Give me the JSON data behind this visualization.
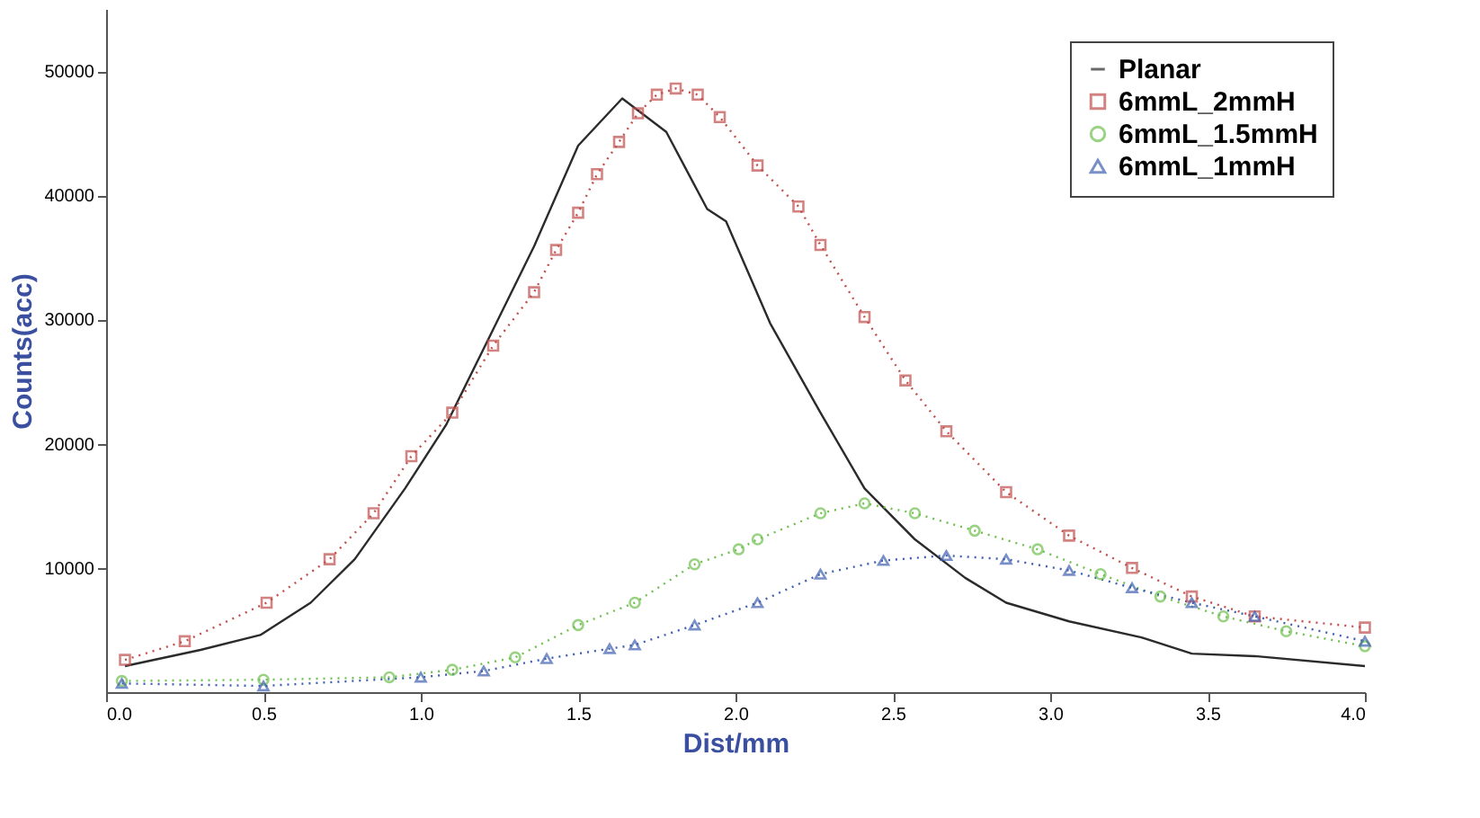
{
  "chart_data": {
    "type": "line",
    "xlabel": "Dist/mm",
    "ylabel": "Counts(acc)",
    "xlim": [
      0,
      4
    ],
    "xticks": [
      {
        "value": 0,
        "label": "0.0"
      },
      0.5,
      {
        "value": 1,
        "label": "1.0"
      },
      1.5,
      {
        "value": 2,
        "label": "2.0"
      },
      2.5,
      {
        "value": 3,
        "label": "3.0"
      },
      3.5,
      {
        "value": 4,
        "label": "4.0"
      }
    ],
    "ylim": [
      0,
      55000
    ],
    "yticks": [
      10000,
      20000,
      30000,
      40000,
      50000
    ],
    "grid": false,
    "legend": "top right",
    "series": [
      {
        "name": "Planar",
        "color": "#2b2b2b",
        "marker": "none",
        "line_style": "solid",
        "x": [
          0.06,
          0.3,
          0.49,
          0.65,
          0.79,
          0.95,
          1.08,
          1.22,
          1.36,
          1.5,
          1.64,
          1.78,
          1.91,
          1.97,
          2.11,
          2.27,
          2.41,
          2.57,
          2.73,
          2.86,
          3.06,
          3.29,
          3.45,
          3.65,
          4.0
        ],
        "values": [
          2100,
          3400,
          4600,
          7200,
          10700,
          16400,
          21500,
          28700,
          35900,
          44000,
          47800,
          45100,
          38900,
          37900,
          29700,
          22500,
          16400,
          12300,
          9200,
          7200,
          5700,
          4400,
          3100,
          2900,
          2100
        ]
      },
      {
        "name": "6mmL_2mmH",
        "color": "#c0504d",
        "marker": "square",
        "line_style": "dotted",
        "x": [
          0.06,
          0.25,
          0.51,
          0.71,
          0.85,
          0.97,
          1.1,
          1.23,
          1.36,
          1.43,
          1.5,
          1.56,
          1.63,
          1.69,
          1.75,
          1.81,
          1.88,
          1.95,
          2.07,
          2.2,
          2.27,
          2.41,
          2.54,
          2.67,
          2.86,
          3.06,
          3.26,
          3.45,
          3.65,
          4.0
        ],
        "values": [
          2600,
          4100,
          7200,
          10700,
          14400,
          19000,
          22500,
          27900,
          32200,
          35600,
          38600,
          41700,
          44300,
          46600,
          48100,
          48600,
          48100,
          46300,
          42400,
          39100,
          36000,
          30200,
          25100,
          21000,
          16100,
          12600,
          10000,
          7700,
          6100,
          5200
        ]
      },
      {
        "name": "6mmL_1.5mmH",
        "color": "#70c050",
        "marker": "circle",
        "line_style": "dotted",
        "x": [
          0.05,
          0.5,
          0.9,
          1.1,
          1.3,
          1.5,
          1.68,
          1.87,
          2.01,
          2.07,
          2.27,
          2.41,
          2.57,
          2.76,
          2.96,
          3.16,
          3.35,
          3.55,
          3.75,
          4.0
        ],
        "values": [
          900,
          1000,
          1200,
          1800,
          2800,
          5400,
          7200,
          10300,
          11500,
          12300,
          14400,
          15200,
          14400,
          13000,
          11500,
          9500,
          7700,
          6100,
          4900,
          3700
        ]
      },
      {
        "name": "6mmL_1mmH",
        "color": "#4060b0",
        "marker": "triangle",
        "line_style": "dotted",
        "x": [
          0.05,
          0.5,
          1.0,
          1.2,
          1.4,
          1.6,
          1.68,
          1.87,
          2.07,
          2.27,
          2.47,
          2.67,
          2.86,
          3.06,
          3.26,
          3.45,
          3.65,
          4.0
        ],
        "values": [
          700,
          500,
          1200,
          1700,
          2700,
          3500,
          3800,
          5400,
          7200,
          9500,
          10600,
          11000,
          10700,
          9800,
          8400,
          7200,
          6100,
          4100
        ]
      }
    ]
  }
}
